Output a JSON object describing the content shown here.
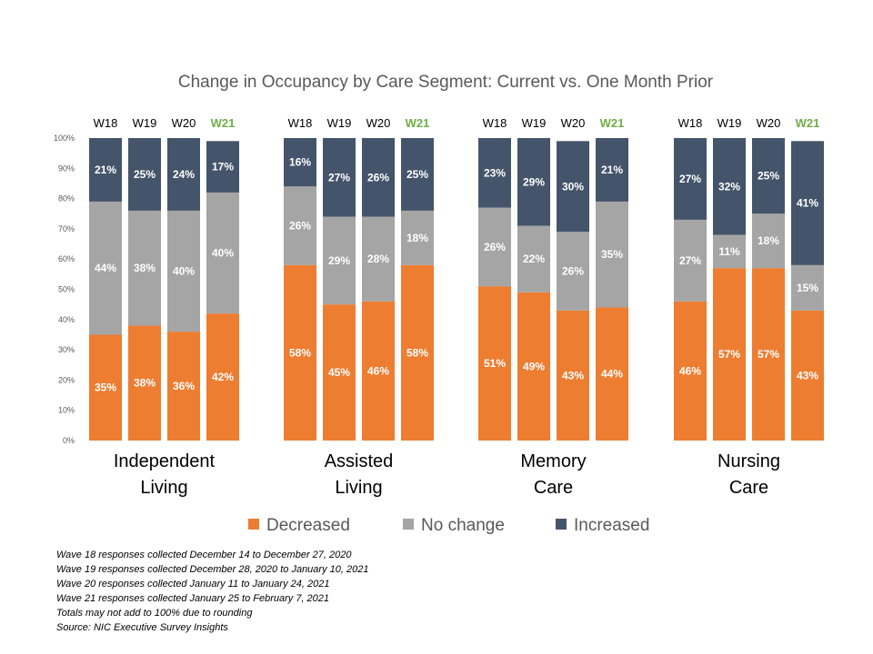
{
  "chart_data": {
    "type": "bar",
    "stacked": true,
    "title": "Change in Occupancy by Care Segment: Current vs. One Month Prior",
    "waves": [
      "W18",
      "W19",
      "W20",
      "W21"
    ],
    "highlight_wave": "W21",
    "groups": [
      {
        "label": [
          "Independent",
          "Living"
        ]
      },
      {
        "label": [
          "Assisted",
          "Living"
        ]
      },
      {
        "label": [
          "Memory",
          "Care"
        ]
      },
      {
        "label": [
          "Nursing",
          "Care"
        ]
      }
    ],
    "ylim": [
      0,
      100
    ],
    "y_ticks": [
      "0%",
      "10%",
      "20%",
      "30%",
      "40%",
      "50%",
      "60%",
      "70%",
      "80%",
      "90%",
      "100%"
    ],
    "series": [
      {
        "name": "Decreased",
        "color": "#ED7D31",
        "values": [
          [
            35,
            38,
            36,
            42
          ],
          [
            58,
            45,
            46,
            58
          ],
          [
            51,
            49,
            43,
            44
          ],
          [
            46,
            57,
            57,
            43
          ]
        ]
      },
      {
        "name": "No change",
        "color": "#A5A5A5",
        "values": [
          [
            44,
            38,
            40,
            40
          ],
          [
            26,
            29,
            28,
            18
          ],
          [
            26,
            22,
            26,
            35
          ],
          [
            27,
            11,
            18,
            15
          ]
        ]
      },
      {
        "name": "Increased",
        "color": "#44546A",
        "values": [
          [
            21,
            25,
            24,
            17
          ],
          [
            16,
            27,
            26,
            25
          ],
          [
            23,
            29,
            30,
            21
          ],
          [
            27,
            32,
            25,
            41
          ]
        ]
      }
    ],
    "legend_position": "bottom",
    "grid": false
  },
  "colors": {
    "highlight": "#70AD47",
    "label_on_bar": "#ffffff"
  },
  "footnotes": [
    "Wave 18 responses collected  December 14 to December  27, 2020",
    "Wave 19 responses collected  December 28, 2020 to January 10, 2021",
    "Wave 20 responses collected  January 11 to January 24, 2021",
    "Wave 21 responses collected  January 25 to February 7, 2021",
    "Totals may not add to 100% due to rounding",
    "Source: NIC Executive Survey Insights"
  ]
}
